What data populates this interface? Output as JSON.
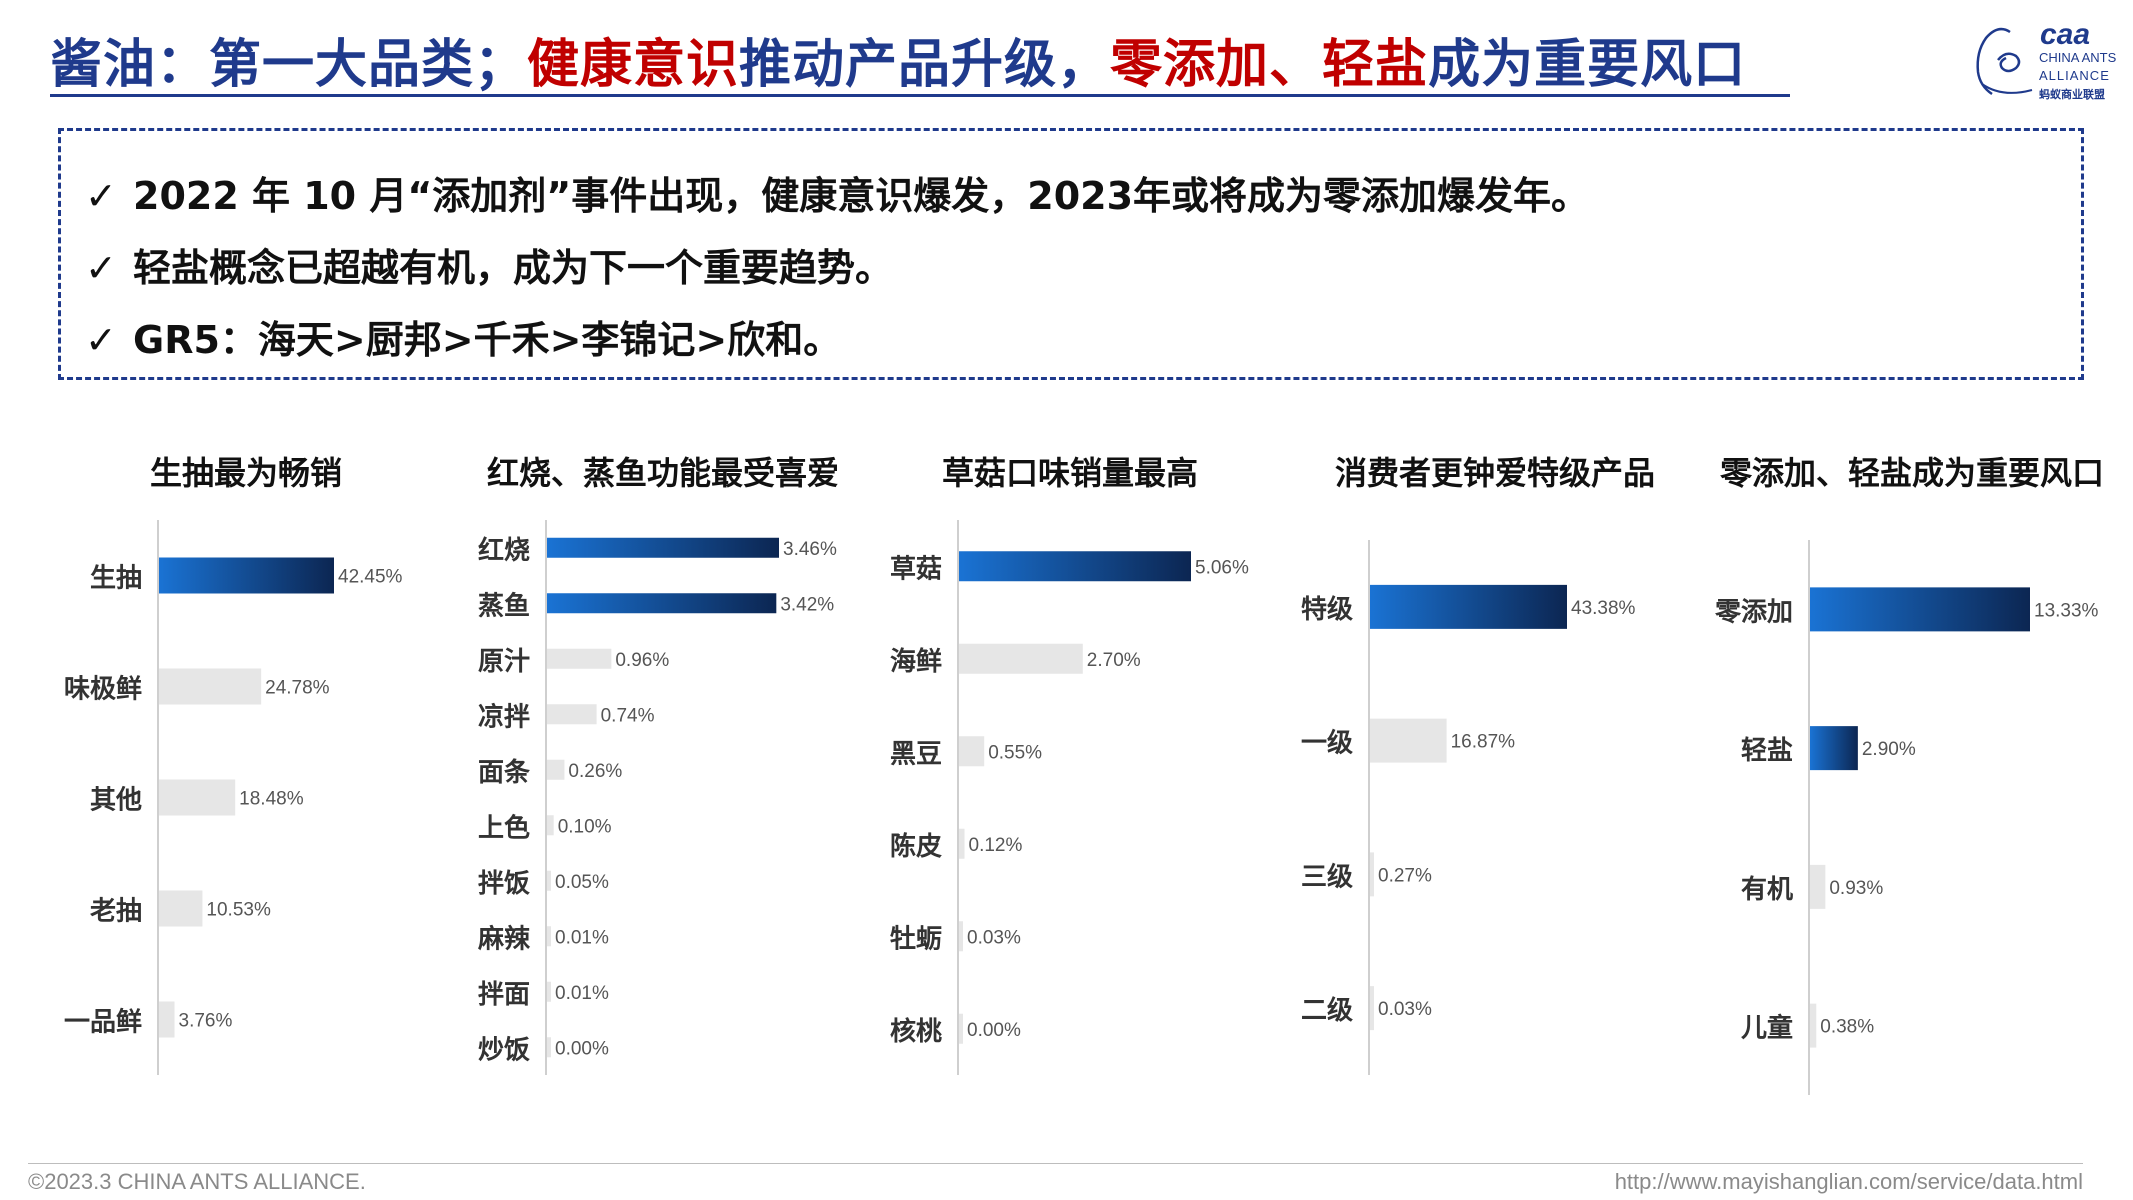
{
  "header": {
    "title_part1": "酱油：第一大品类；",
    "title_part2": "健康意识",
    "title_part3": "推动产品升级，",
    "title_part4": "零添加、轻盐",
    "title_part5": "成为重要风口",
    "logo_text1": "CHINA ANTS",
    "logo_text2": "ALLIANCE",
    "logo_text3": "蚂蚁商业联盟"
  },
  "notes": {
    "check": "✓",
    "items": [
      "2022 年 10 月“添加剂”事件出现，健康意识爆发，2023年或将成为零添加爆发年。",
      "轻盐概念已超越有机，成为下一个重要趋势。",
      "GR5：海天>厨邦>千禾>李锦记>欣和。"
    ]
  },
  "colors": {
    "title_blue": "#1f3a8c",
    "title_red": "#c00000",
    "bar_gradient_start": "#1a73d4",
    "bar_gradient_end": "#0c2652",
    "bar_grey": "#e6e6e6"
  },
  "chart_data": [
    {
      "type": "bar",
      "orientation": "horizontal",
      "title": "生抽最为畅销",
      "categories": [
        "生抽",
        "味极鲜",
        "其他",
        "老抽",
        "一品鲜"
      ],
      "values": [
        42.45,
        24.78,
        18.48,
        10.53,
        3.76
      ],
      "labels": [
        "42.45%",
        "24.78%",
        "18.48%",
        "10.53%",
        "3.76%"
      ],
      "highlight": [
        true,
        false,
        false,
        false,
        false
      ]
    },
    {
      "type": "bar",
      "orientation": "horizontal",
      "title": "红烧、蒸鱼功能最受喜爱",
      "categories": [
        "红烧",
        "蒸鱼",
        "原汁",
        "凉拌",
        "面条",
        "上色",
        "拌饭",
        "麻辣",
        "拌面",
        "炒饭"
      ],
      "values": [
        3.46,
        3.42,
        0.96,
        0.74,
        0.26,
        0.1,
        0.05,
        0.01,
        0.01,
        0.0
      ],
      "labels": [
        "3.46%",
        "3.42%",
        "0.96%",
        "0.74%",
        "0.26%",
        "0.10%",
        "0.05%",
        "0.01%",
        "0.01%",
        "0.00%"
      ],
      "highlight": [
        true,
        true,
        false,
        false,
        false,
        false,
        false,
        false,
        false,
        false
      ]
    },
    {
      "type": "bar",
      "orientation": "horizontal",
      "title": "草菇口味销量最高",
      "categories": [
        "草菇",
        "海鲜",
        "黑豆",
        "陈皮",
        "牡蛎",
        "核桃"
      ],
      "values": [
        5.06,
        2.7,
        0.55,
        0.12,
        0.03,
        0.0
      ],
      "labels": [
        "5.06%",
        "2.70%",
        "0.55%",
        "0.12%",
        "0.03%",
        "0.00%"
      ],
      "highlight": [
        true,
        false,
        false,
        false,
        false,
        false
      ]
    },
    {
      "type": "bar",
      "orientation": "horizontal",
      "title": "消费者更钟爱特级产品",
      "categories": [
        "特级",
        "一级",
        "三级",
        "二级"
      ],
      "values": [
        43.38,
        16.87,
        0.27,
        0.03
      ],
      "labels": [
        "43.38%",
        "16.87%",
        "0.27%",
        "0.03%"
      ],
      "highlight": [
        true,
        false,
        false,
        false
      ]
    },
    {
      "type": "bar",
      "orientation": "horizontal",
      "title": "零添加、轻盐成为重要风口",
      "categories": [
        "零添加",
        "轻盐",
        "有机",
        "儿童"
      ],
      "values": [
        13.33,
        2.9,
        0.93,
        0.38
      ],
      "labels": [
        "13.33%",
        "2.90%",
        "0.93%",
        "0.38%"
      ],
      "highlight": [
        true,
        true,
        false,
        false
      ]
    }
  ],
  "footer": {
    "copyright": "©2023.3 CHINA ANTS ALLIANCE.",
    "url": "http://www.mayishanglian.com/service/data.html"
  }
}
